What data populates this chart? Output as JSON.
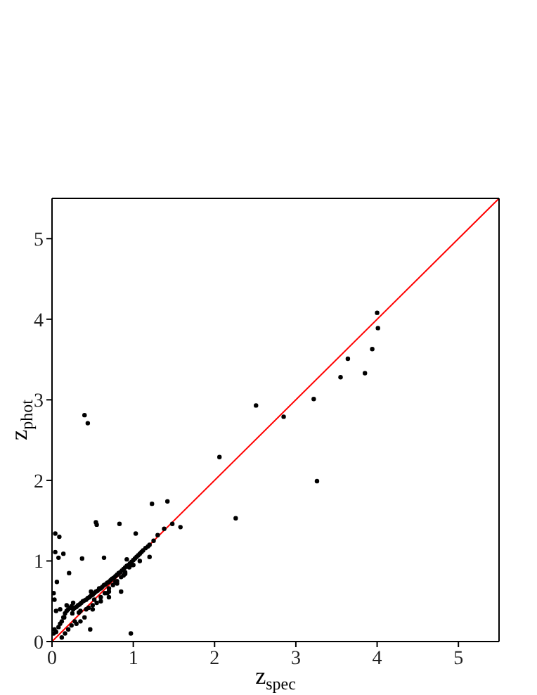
{
  "chart_data": {
    "type": "scatter",
    "xlabel": "z$_{spec}$",
    "ylabel": "z$_{phot}$",
    "xlim": [
      0,
      5.5
    ],
    "ylim": [
      0,
      5.5
    ],
    "xticks": [
      0,
      1,
      2,
      3,
      4,
      5
    ],
    "yticks": [
      0,
      1,
      2,
      3,
      4,
      5
    ],
    "grid": false,
    "marker": "circle",
    "series": [
      {
        "color": "#000000",
        "x": [
          0.4,
          0.44,
          2.51,
          2.06,
          2.26,
          1.23,
          1.42,
          0.54,
          0.55,
          0.83,
          1.48,
          1.58,
          1.38,
          1.03,
          0.97,
          0.04,
          0.09,
          0.04,
          0.08,
          0.14,
          0.37,
          0.64,
          0.21,
          0.06,
          4.0,
          4.01,
          3.94,
          3.64,
          3.85,
          3.55,
          3.22,
          2.85,
          3.26,
          0.02,
          0.03,
          0.05,
          0.08,
          0.1,
          0.12,
          0.14,
          0.16,
          0.18,
          0.2,
          0.22,
          0.24,
          0.26,
          0.28,
          0.3,
          0.32,
          0.34,
          0.36,
          0.38,
          0.4,
          0.42,
          0.44,
          0.46,
          0.48,
          0.5,
          0.52,
          0.54,
          0.56,
          0.58,
          0.6,
          0.62,
          0.64,
          0.66,
          0.68,
          0.7,
          0.72,
          0.74,
          0.76,
          0.78,
          0.8,
          0.82,
          0.84,
          0.86,
          0.88,
          0.9,
          0.92,
          0.94,
          0.96,
          0.98,
          1.0,
          1.02,
          1.04,
          1.06,
          1.08,
          1.1,
          1.12,
          1.15,
          1.18,
          1.2,
          1.25,
          1.3,
          0.12,
          0.16,
          0.2,
          0.24,
          0.28,
          0.15,
          0.25,
          0.35,
          0.45,
          0.5,
          0.55,
          0.6,
          0.65,
          0.7,
          0.75,
          0.8,
          0.85,
          0.9,
          0.95,
          0.3,
          0.4,
          0.5,
          0.6,
          0.7,
          0.8,
          0.9,
          1.0,
          0.18,
          0.26,
          0.33,
          0.42,
          0.48,
          0.52,
          0.58,
          0.68,
          0.78,
          0.88,
          0.98,
          1.08,
          0.1,
          0.35,
          0.47,
          0.7,
          0.85,
          0.92,
          1.2,
          0.02,
          0.03,
          0.05
        ],
        "values": [
          2.81,
          2.71,
          2.93,
          2.29,
          1.53,
          1.71,
          1.74,
          1.48,
          1.45,
          1.46,
          1.46,
          1.42,
          1.4,
          1.34,
          0.1,
          1.34,
          1.3,
          1.11,
          1.04,
          1.09,
          1.03,
          1.04,
          0.85,
          0.74,
          4.08,
          3.89,
          3.63,
          3.51,
          3.33,
          3.28,
          3.01,
          2.79,
          1.99,
          0.1,
          0.15,
          0.12,
          0.18,
          0.22,
          0.25,
          0.3,
          0.35,
          0.38,
          0.4,
          0.42,
          0.44,
          0.4,
          0.42,
          0.43,
          0.45,
          0.46,
          0.48,
          0.5,
          0.51,
          0.52,
          0.54,
          0.55,
          0.57,
          0.58,
          0.6,
          0.62,
          0.63,
          0.65,
          0.66,
          0.68,
          0.7,
          0.71,
          0.73,
          0.74,
          0.76,
          0.78,
          0.79,
          0.81,
          0.83,
          0.85,
          0.86,
          0.88,
          0.9,
          0.92,
          0.94,
          0.95,
          0.97,
          0.99,
          1.01,
          1.03,
          1.05,
          1.07,
          1.09,
          1.11,
          1.13,
          1.16,
          1.18,
          1.2,
          1.25,
          1.32,
          0.05,
          0.1,
          0.15,
          0.2,
          0.25,
          0.3,
          0.35,
          0.38,
          0.42,
          0.45,
          0.48,
          0.55,
          0.6,
          0.66,
          0.7,
          0.75,
          0.8,
          0.86,
          0.92,
          0.22,
          0.3,
          0.4,
          0.5,
          0.62,
          0.72,
          0.84,
          0.95,
          0.45,
          0.48,
          0.36,
          0.4,
          0.62,
          0.52,
          0.66,
          0.6,
          0.74,
          0.82,
          0.95,
          1.0,
          0.4,
          0.25,
          0.15,
          0.55,
          0.62,
          1.02,
          1.05,
          0.6,
          0.52,
          0.38
        ]
      },
      {
        "type": "line",
        "marker": "none",
        "color": "#ff0000",
        "x": [
          0,
          5.5
        ],
        "values": [
          0,
          5.5
        ]
      }
    ]
  }
}
